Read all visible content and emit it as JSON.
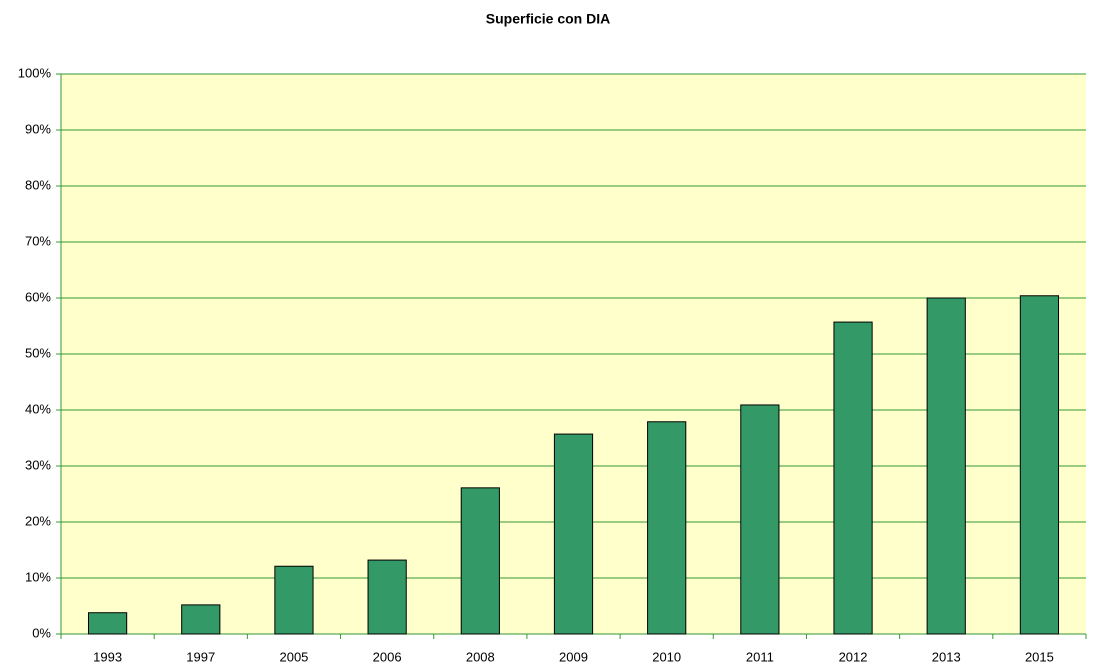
{
  "chart_data": {
    "type": "bar",
    "title": "Superficie con DIA",
    "categories": [
      "1993",
      "1997",
      "2005",
      "2006",
      "2008",
      "2009",
      "2010",
      "2011",
      "2012",
      "2013",
      "2015"
    ],
    "values": [
      3.8,
      5.2,
      12.1,
      13.2,
      26.1,
      35.7,
      37.9,
      40.9,
      55.7,
      60.0,
      60.4
    ],
    "color": "#339966",
    "ylim": [
      0,
      100
    ],
    "yticks": [
      {
        "value": 0,
        "label": "0%"
      },
      {
        "value": 10,
        "label": "10%"
      },
      {
        "value": 20,
        "label": "20%"
      },
      {
        "value": 30,
        "label": "30%"
      },
      {
        "value": 40,
        "label": "40%"
      },
      {
        "value": 50,
        "label": "50%"
      },
      {
        "value": 60,
        "label": "60%"
      },
      {
        "value": 70,
        "label": "70%"
      },
      {
        "value": 80,
        "label": "80%"
      },
      {
        "value": 90,
        "label": "90%"
      },
      {
        "value": 100,
        "label": "100%"
      }
    ],
    "grid": true
  }
}
